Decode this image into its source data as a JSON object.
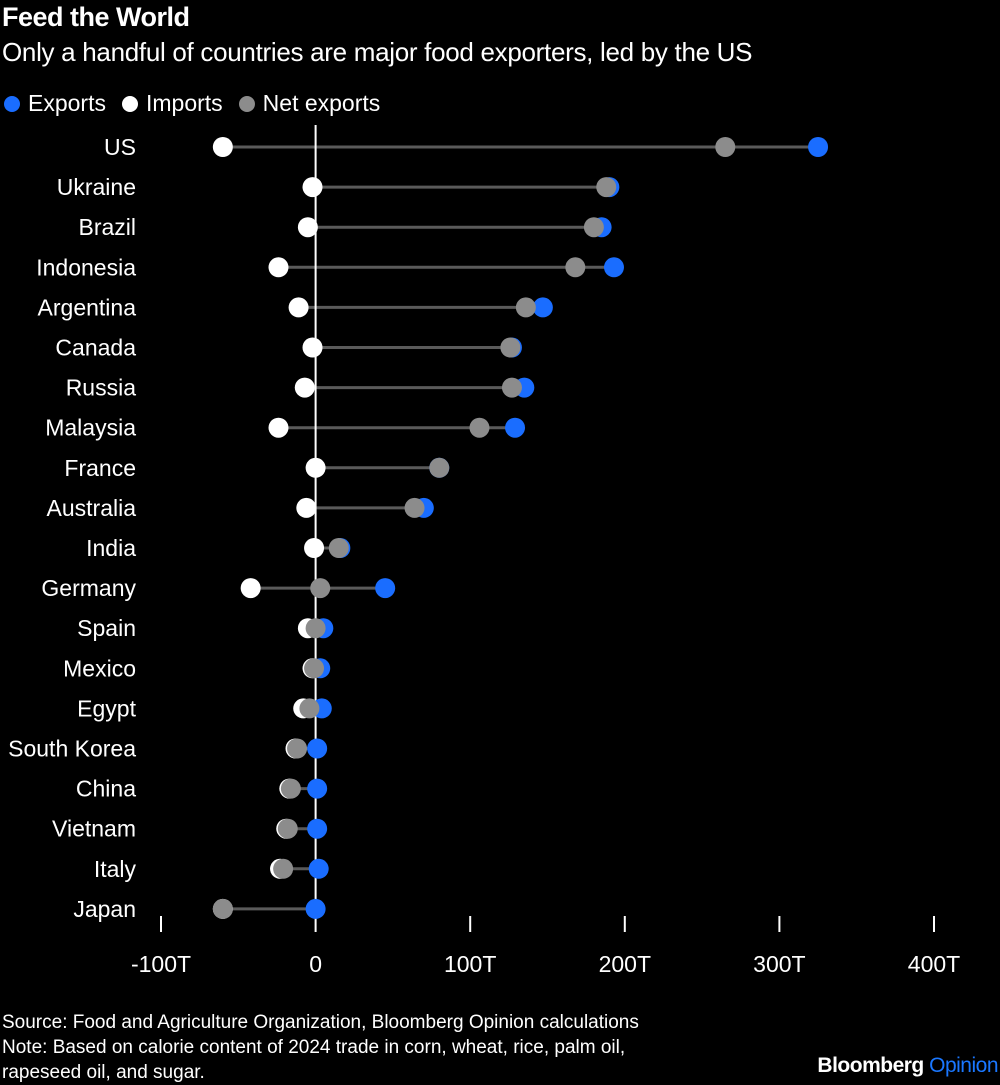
{
  "header": {
    "title": "Feed the World",
    "subtitle": "Only a handful of countries are major food exporters, led by the US"
  },
  "legend": {
    "exports": "Exports",
    "imports": "Imports",
    "net": "Net exports"
  },
  "colors": {
    "exports": "#1a6dff",
    "imports": "#ffffff",
    "net": "#8c8c8c",
    "stem": "#5a5a5a",
    "zero_line": "#ffffff",
    "brand_accent": "#1a77ff"
  },
  "chart_data": {
    "type": "dot-plot",
    "title": "Feed the World",
    "subtitle": "Only a handful of countries are major food exporters, led by the US",
    "xlim": [
      -100,
      400
    ],
    "xticks": [
      -100,
      0,
      100,
      200,
      300,
      400
    ],
    "xtick_labels": [
      "-100T",
      "0",
      "100T",
      "200T",
      "300T",
      "400T"
    ],
    "units": "trillion calories",
    "categories": [
      "US",
      "Ukraine",
      "Brazil",
      "Indonesia",
      "Argentina",
      "Canada",
      "Russia",
      "Malaysia",
      "France",
      "Australia",
      "India",
      "Germany",
      "Spain",
      "Mexico",
      "Egypt",
      "South Korea",
      "China",
      "Vietnam",
      "Italy",
      "Japan"
    ],
    "series": [
      {
        "name": "Exports",
        "values": [
          325,
          190,
          185,
          193,
          147,
          127,
          135,
          129,
          80,
          70,
          16,
          45,
          5,
          3,
          4,
          1,
          1,
          1,
          2,
          0
        ]
      },
      {
        "name": "Imports",
        "values": [
          -60,
          -2,
          -5,
          -24,
          -11,
          -2,
          -7,
          -24,
          0,
          -6,
          -1,
          -42,
          -5,
          -2,
          -8,
          -13,
          -17,
          -19,
          -23,
          -60
        ]
      },
      {
        "name": "Net exports",
        "values": [
          265,
          188,
          180,
          168,
          136,
          126,
          127,
          106,
          80,
          64,
          15,
          3,
          0,
          -1,
          -4,
          -12,
          -16,
          -18,
          -21,
          -60
        ]
      }
    ]
  },
  "footer": {
    "source": "Source: Food and Agriculture Organization, Bloomberg Opinion calculations",
    "note_line1": "Note: Based on calorie content of 2024 trade in corn, wheat, rice, palm oil,",
    "note_line2": "rapeseed oil, and sugar."
  },
  "brand": {
    "part1": "Bloomberg",
    "part2": "Opinion"
  }
}
